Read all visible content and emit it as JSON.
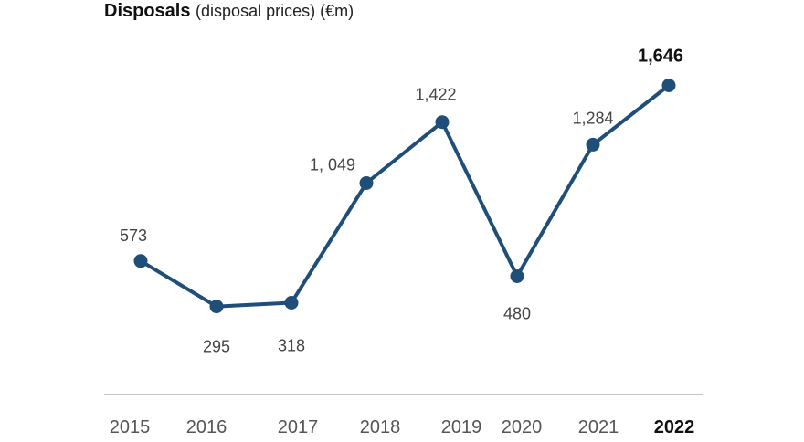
{
  "chart_data": {
    "type": "line",
    "title": "Disposals",
    "subtitle": "(disposal prices) (€m)",
    "xlabel": "",
    "ylabel": "",
    "x": [
      "2015",
      "2016",
      "2017",
      "2018",
      "2019",
      "2020",
      "2021",
      "2022"
    ],
    "series": [
      {
        "values": [
          573,
          295,
          318,
          1049,
          1422,
          480,
          1284,
          1646
        ],
        "labels": [
          "573",
          "295",
          "318",
          "1, 049",
          "1,422",
          "480",
          "1,284",
          "1,646"
        ],
        "color": "#1f4e79"
      }
    ],
    "highlight_index": 7,
    "ylim": [
      0,
      1800
    ],
    "grid": false,
    "legend": "none",
    "baseline_color": "#b0b0b0"
  }
}
